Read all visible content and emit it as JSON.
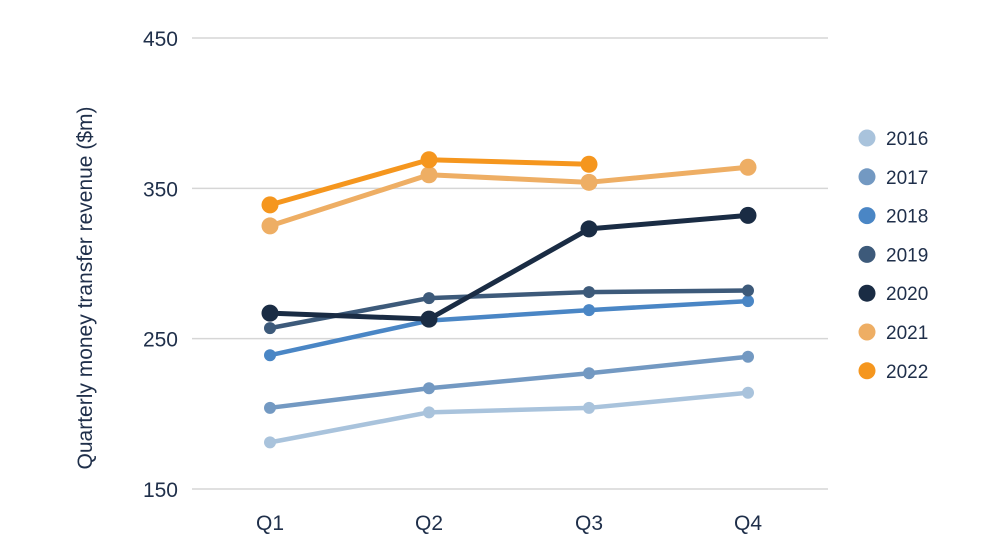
{
  "chart_data": {
    "type": "line",
    "title": "",
    "xlabel": "",
    "ylabel": "Quarterly money transfer revenue ($m)",
    "categories": [
      "Q1",
      "Q2",
      "Q3",
      "Q4"
    ],
    "ylim": [
      150,
      450
    ],
    "yticks": [
      150,
      250,
      350,
      450
    ],
    "grid": true,
    "legend_position": "right",
    "series": [
      {
        "name": "2016",
        "color": "#a9c3dc",
        "values": [
          181,
          201,
          204,
          214
        ]
      },
      {
        "name": "2017",
        "color": "#7399c2",
        "values": [
          204,
          217,
          227,
          238
        ]
      },
      {
        "name": "2018",
        "color": "#4a86c5",
        "values": [
          239,
          262,
          269,
          275
        ]
      },
      {
        "name": "2019",
        "color": "#3d5a7a",
        "values": [
          257,
          277,
          281,
          282
        ]
      },
      {
        "name": "2020",
        "color": "#1a2c44",
        "values": [
          267,
          263,
          323,
          332
        ]
      },
      {
        "name": "2021",
        "color": "#eeae64",
        "values": [
          325,
          359,
          354,
          364
        ]
      },
      {
        "name": "2022",
        "color": "#f5961e",
        "values": [
          339,
          369,
          366,
          null
        ]
      }
    ]
  }
}
